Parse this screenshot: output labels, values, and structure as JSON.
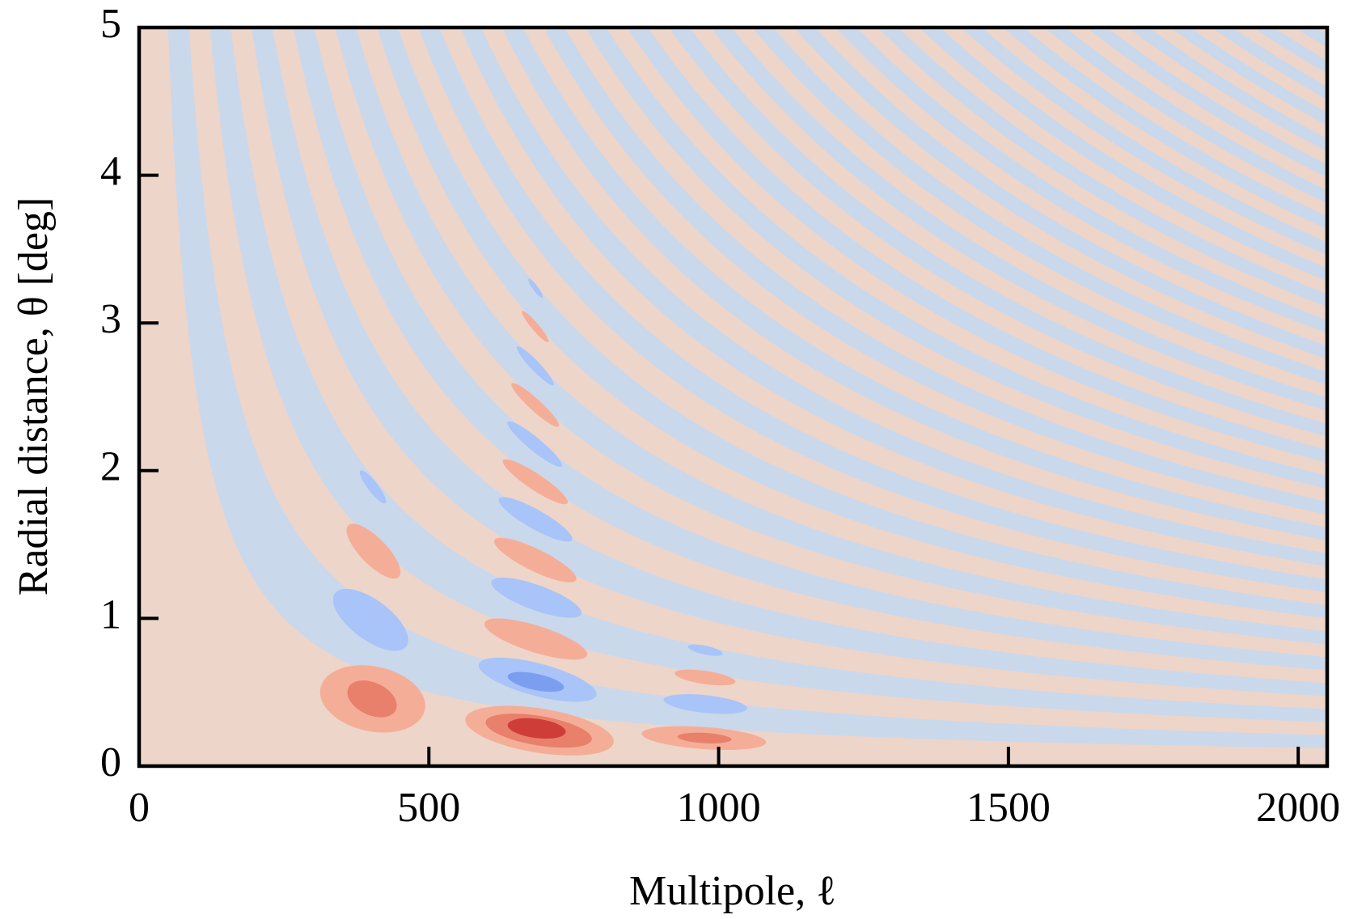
{
  "chart_data": {
    "type": "contour",
    "xlabel": "Multipole, ℓ",
    "ylabel": "Radial distance, θ [deg]",
    "xlim": [
      0,
      2050
    ],
    "ylim": [
      0,
      5
    ],
    "xticks": [
      0,
      500,
      1000,
      1500,
      2000
    ],
    "yticks": [
      0,
      1,
      2,
      3,
      4,
      5
    ],
    "levels": [
      "#7b9ef0",
      "#a8c4f8",
      "#cad8ec",
      "#edd5c9",
      "#f4ae98",
      "#e8806c",
      "#cf3d38"
    ],
    "background_level": 3,
    "band_level": 2,
    "band_edges": [
      250,
      430,
      610,
      790,
      970,
      1150,
      1330,
      1510,
      1690,
      1870,
      2050,
      2230,
      2410,
      2590,
      2770,
      2950,
      3130,
      3310,
      3490,
      3670,
      3850,
      4030,
      4210,
      4390,
      4570,
      4750,
      4930,
      5110,
      5290,
      5470,
      5650,
      5830,
      6010,
      6190,
      6370,
      6550,
      6730,
      6910,
      7090,
      7270,
      7450,
      7630,
      7810,
      7990,
      8170,
      8350,
      8530,
      8710,
      8890,
      9070,
      9250,
      9430,
      9610,
      9790,
      9970,
      10150,
      10330
    ],
    "regions": [
      {
        "level": 4,
        "x": [
          313,
          493
        ],
        "y": [
          0.53,
          0.38
        ],
        "width": 0.44
      },
      {
        "level": 5,
        "x": [
          361,
          443
        ],
        "y": [
          0.53,
          0.38
        ],
        "width": 0.22
      },
      {
        "level": 4,
        "x": [
          563,
          819
        ],
        "y": [
          0.32,
          0.16
        ],
        "width": 0.3
      },
      {
        "level": 5,
        "x": [
          598,
          781
        ],
        "y": [
          0.3,
          0.18
        ],
        "width": 0.2
      },
      {
        "level": 6,
        "x": [
          636,
          736
        ],
        "y": [
          0.28,
          0.23
        ],
        "width": 0.13
      },
      {
        "level": 4,
        "x": [
          867,
          1082
        ],
        "y": [
          0.22,
          0.16
        ],
        "width": 0.15
      },
      {
        "level": 5,
        "x": [
          929,
          1022
        ],
        "y": [
          0.2,
          0.18
        ],
        "width": 0.07
      },
      {
        "level": 1,
        "x": [
          586,
          789
        ],
        "y": [
          0.69,
          0.48
        ],
        "width": 0.22
      },
      {
        "level": 0,
        "x": [
          636,
          733
        ],
        "y": [
          0.61,
          0.53
        ],
        "width": 0.11
      },
      {
        "level": 4,
        "x": [
          596,
          773
        ],
        "y": [
          0.97,
          0.75
        ],
        "width": 0.18
      },
      {
        "level": 1,
        "x": [
          608,
          763
        ],
        "y": [
          1.25,
          1.03
        ],
        "width": 0.17
      },
      {
        "level": 4,
        "x": [
          613,
          754
        ],
        "y": [
          1.53,
          1.26
        ],
        "width": 0.15
      },
      {
        "level": 1,
        "x": [
          621,
          747
        ],
        "y": [
          1.81,
          1.53
        ],
        "width": 0.13
      },
      {
        "level": 4,
        "x": [
          628,
          739
        ],
        "y": [
          2.07,
          1.78
        ],
        "width": 0.11
      },
      {
        "level": 1,
        "x": [
          636,
          729
        ],
        "y": [
          2.33,
          2.03
        ],
        "width": 0.09
      },
      {
        "level": 4,
        "x": [
          643,
          724
        ],
        "y": [
          2.59,
          2.3
        ],
        "width": 0.08
      },
      {
        "level": 1,
        "x": [
          652,
          715
        ],
        "y": [
          2.84,
          2.58
        ],
        "width": 0.065
      },
      {
        "level": 4,
        "x": [
          661,
          706
        ],
        "y": [
          3.08,
          2.87
        ],
        "width": 0.05
      },
      {
        "level": 1,
        "x": [
          672,
          696
        ],
        "y": [
          3.3,
          3.17
        ],
        "width": 0.035
      },
      {
        "level": 1,
        "x": [
          338,
          461
        ],
        "y": [
          1.17,
          0.81
        ],
        "width": 0.27
      },
      {
        "level": 4,
        "x": [
          361,
          448
        ],
        "y": [
          1.63,
          1.28
        ],
        "width": 0.18
      },
      {
        "level": 1,
        "x": [
          382,
          425
        ],
        "y": [
          2.0,
          1.78
        ],
        "width": 0.07
      },
      {
        "level": 1,
        "x": [
          947,
          1007
        ],
        "y": [
          0.81,
          0.76
        ],
        "width": 0.06
      },
      {
        "level": 4,
        "x": [
          924,
          1029
        ],
        "y": [
          0.63,
          0.57
        ],
        "width": 0.09
      },
      {
        "level": 1,
        "x": [
          905,
          1049
        ],
        "y": [
          0.45,
          0.39
        ],
        "width": 0.12
      }
    ]
  }
}
